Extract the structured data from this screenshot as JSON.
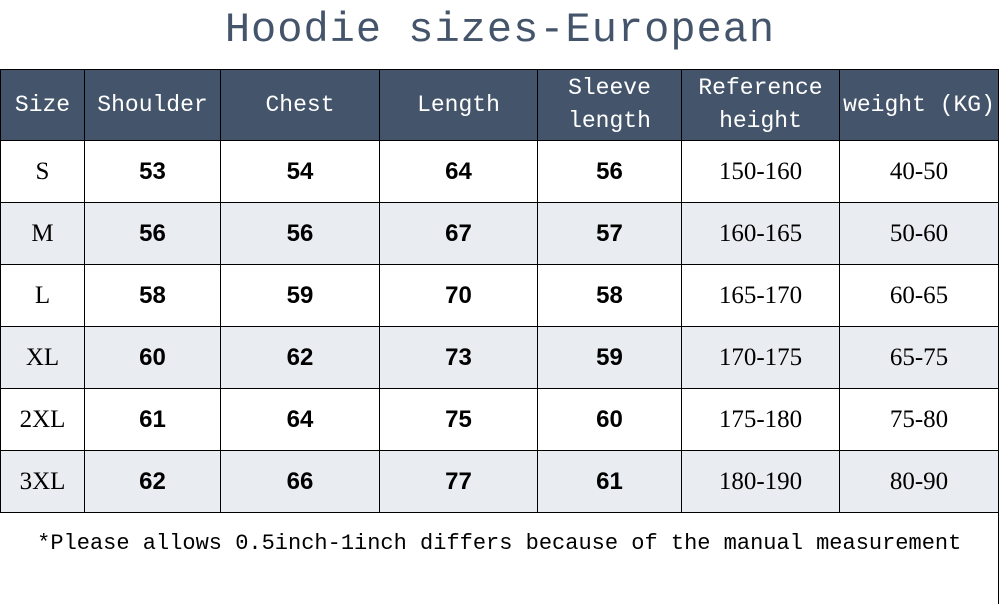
{
  "title": "Hoodie sizes-European",
  "header_color": "#44546a",
  "headers": [
    "Size",
    "Shoulder",
    "Chest",
    "Length",
    "Sleeve length",
    "Reference height",
    "weight (KG)"
  ],
  "rows": [
    [
      "S",
      "53",
      "54",
      "64",
      "56",
      "150-160",
      "40-50"
    ],
    [
      "M",
      "56",
      "56",
      "67",
      "57",
      "160-165",
      "50-60"
    ],
    [
      "L",
      "58",
      "59",
      "70",
      "58",
      "165-170",
      "60-65"
    ],
    [
      "XL",
      "60",
      "62",
      "73",
      "59",
      "170-175",
      "65-75"
    ],
    [
      "2XL",
      "61",
      "64",
      "75",
      "60",
      "175-180",
      "75-80"
    ],
    [
      "3XL",
      "62",
      "66",
      "77",
      "61",
      "180-190",
      "80-90"
    ]
  ],
  "note": "*Please allows 0.5inch-1inch differs because of the manual measurement"
}
